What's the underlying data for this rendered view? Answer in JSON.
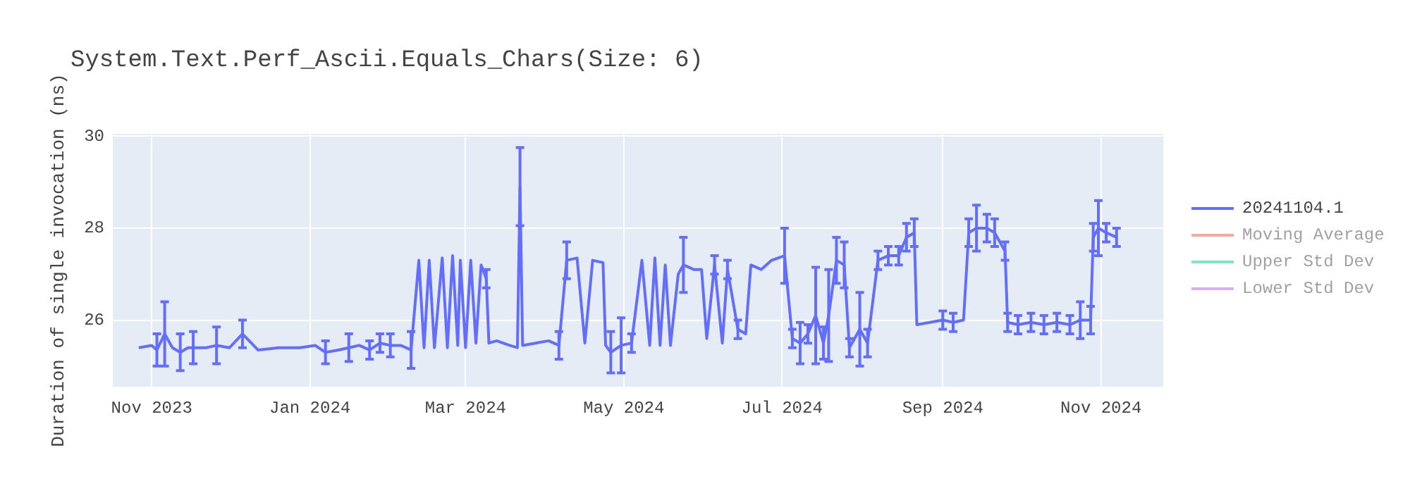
{
  "chart_data": {
    "type": "line",
    "title": "System.Text.Perf_Ascii.Equals_Chars(Size: 6)",
    "ylabel": "Duration of single invocation (ns)",
    "xlim": [
      "2023-10-17",
      "2024-11-25"
    ],
    "ylim": [
      24.55,
      30.05
    ],
    "yticks": [
      26,
      28,
      30
    ],
    "xticks": [
      {
        "value": "2023-11",
        "label": "Nov 2023"
      },
      {
        "value": "2024-01",
        "label": "Jan 2024"
      },
      {
        "value": "2024-03",
        "label": "Mar 2024"
      },
      {
        "value": "2024-05",
        "label": "May 2024"
      },
      {
        "value": "2024-07",
        "label": "Jul 2024"
      },
      {
        "value": "2024-09",
        "label": "Sep 2024"
      },
      {
        "value": "2024-11",
        "label": "Nov 2024"
      }
    ],
    "grid": true,
    "legend": "right",
    "marker": "none",
    "line_style": "solid",
    "series": [
      {
        "name": "20241104.1",
        "color": "#636efa",
        "x": [
          "2023-10-27",
          "2023-11-01",
          "2023-11-03",
          "2023-11-06",
          "2023-11-09",
          "2023-11-12",
          "2023-11-15",
          "2023-11-17",
          "2023-11-22",
          "2023-11-26",
          "2023-12-01",
          "2023-12-06",
          "2023-12-12",
          "2023-12-20",
          "2023-12-28",
          "2024-01-03",
          "2024-01-07",
          "2024-01-12",
          "2024-01-16",
          "2024-01-20",
          "2024-01-24",
          "2024-01-28",
          "2024-02-01",
          "2024-02-05",
          "2024-02-09",
          "2024-02-12",
          "2024-02-14",
          "2024-02-16",
          "2024-02-18",
          "2024-02-21",
          "2024-02-23",
          "2024-02-25",
          "2024-02-27",
          "2024-02-28",
          "2024-03-01",
          "2024-03-03",
          "2024-03-05",
          "2024-03-07",
          "2024-03-09",
          "2024-03-10",
          "2024-03-13",
          "2024-03-18",
          "2024-03-21",
          "2024-03-22",
          "2024-03-23",
          "2024-03-28",
          "2024-04-02",
          "2024-04-06",
          "2024-04-09",
          "2024-04-13",
          "2024-04-16",
          "2024-04-19",
          "2024-04-23",
          "2024-04-24",
          "2024-04-26",
          "2024-04-30",
          "2024-05-04",
          "2024-05-08",
          "2024-05-11",
          "2024-05-13",
          "2024-05-15",
          "2024-05-17",
          "2024-05-19",
          "2024-05-22",
          "2024-05-24",
          "2024-05-28",
          "2024-05-31",
          "2024-06-02",
          "2024-06-05",
          "2024-06-08",
          "2024-06-10",
          "2024-06-14",
          "2024-06-17",
          "2024-06-19",
          "2024-06-23",
          "2024-06-27",
          "2024-07-02",
          "2024-07-05",
          "2024-07-08",
          "2024-07-11",
          "2024-07-14",
          "2024-07-17",
          "2024-07-19",
          "2024-07-22",
          "2024-07-25",
          "2024-07-27",
          "2024-07-31",
          "2024-08-03",
          "2024-08-07",
          "2024-08-11",
          "2024-08-15",
          "2024-08-18",
          "2024-08-21",
          "2024-08-22",
          "2024-08-27",
          "2024-09-01",
          "2024-09-05",
          "2024-09-09",
          "2024-09-11",
          "2024-09-14",
          "2024-09-18",
          "2024-09-21",
          "2024-09-25",
          "2024-09-26",
          "2024-09-30",
          "2024-10-05",
          "2024-10-10",
          "2024-10-15",
          "2024-10-20",
          "2024-10-24",
          "2024-10-28",
          "2024-10-29",
          "2024-10-31",
          "2024-11-03",
          "2024-11-07"
        ],
        "values": [
          25.4,
          25.45,
          25.35,
          25.7,
          25.4,
          25.3,
          25.4,
          25.4,
          25.4,
          25.45,
          25.4,
          25.7,
          25.35,
          25.4,
          25.4,
          25.45,
          25.3,
          25.35,
          25.4,
          25.45,
          25.35,
          25.5,
          25.45,
          25.45,
          25.35,
          27.3,
          25.4,
          27.3,
          25.4,
          27.35,
          25.4,
          27.4,
          25.45,
          27.3,
          25.4,
          27.3,
          25.5,
          27.2,
          26.9,
          25.5,
          25.55,
          25.45,
          25.4,
          28.9,
          25.45,
          25.5,
          25.55,
          25.45,
          27.3,
          27.35,
          25.5,
          27.3,
          27.25,
          25.45,
          25.3,
          25.45,
          25.5,
          27.3,
          25.45,
          27.35,
          25.45,
          27.2,
          25.45,
          27.0,
          27.2,
          27.1,
          27.1,
          25.6,
          27.2,
          25.5,
          27.1,
          25.8,
          25.7,
          27.2,
          27.1,
          27.3,
          27.4,
          25.6,
          25.5,
          25.7,
          26.1,
          25.5,
          26.1,
          27.3,
          27.2,
          25.4,
          25.8,
          25.5,
          27.3,
          27.4,
          27.4,
          27.8,
          27.9,
          25.9,
          25.95,
          26.0,
          25.95,
          26.0,
          27.9,
          28.0,
          28.0,
          27.9,
          27.5,
          25.95,
          25.9,
          25.95,
          25.9,
          25.95,
          25.9,
          26.0,
          26.0,
          27.8,
          28.0,
          27.9,
          27.8
        ],
        "errors": [
          null,
          null,
          0.35,
          0.7,
          null,
          0.4,
          null,
          0.35,
          null,
          0.4,
          null,
          0.3,
          null,
          null,
          null,
          null,
          0.25,
          null,
          0.3,
          null,
          0.2,
          0.2,
          0.25,
          null,
          0.4,
          null,
          null,
          null,
          null,
          null,
          null,
          null,
          null,
          null,
          null,
          null,
          null,
          null,
          0.2,
          null,
          null,
          null,
          null,
          0.85,
          null,
          null,
          null,
          0.3,
          0.4,
          null,
          null,
          null,
          null,
          null,
          0.45,
          0.6,
          0.2,
          null,
          null,
          null,
          null,
          null,
          null,
          null,
          0.6,
          null,
          null,
          null,
          0.2,
          null,
          0.2,
          0.2,
          null,
          null,
          null,
          null,
          0.6,
          0.2,
          0.45,
          0.2,
          1.05,
          0.35,
          1.0,
          0.5,
          0.5,
          0.2,
          0.8,
          0.3,
          0.2,
          0.2,
          0.2,
          0.3,
          0.3,
          null,
          null,
          0.2,
          0.2,
          null,
          0.3,
          0.5,
          0.3,
          0.3,
          0.2,
          0.2,
          0.2,
          0.2,
          0.2,
          0.2,
          0.2,
          0.4,
          0.3,
          0.3,
          0.6,
          0.2,
          0.2
        ]
      },
      {
        "name": "Moving Average",
        "color": "#ef553b"
      },
      {
        "name": "Upper Std Dev",
        "color": "#00cc96"
      },
      {
        "name": "Lower Std Dev",
        "color": "#ab63fa"
      }
    ]
  }
}
